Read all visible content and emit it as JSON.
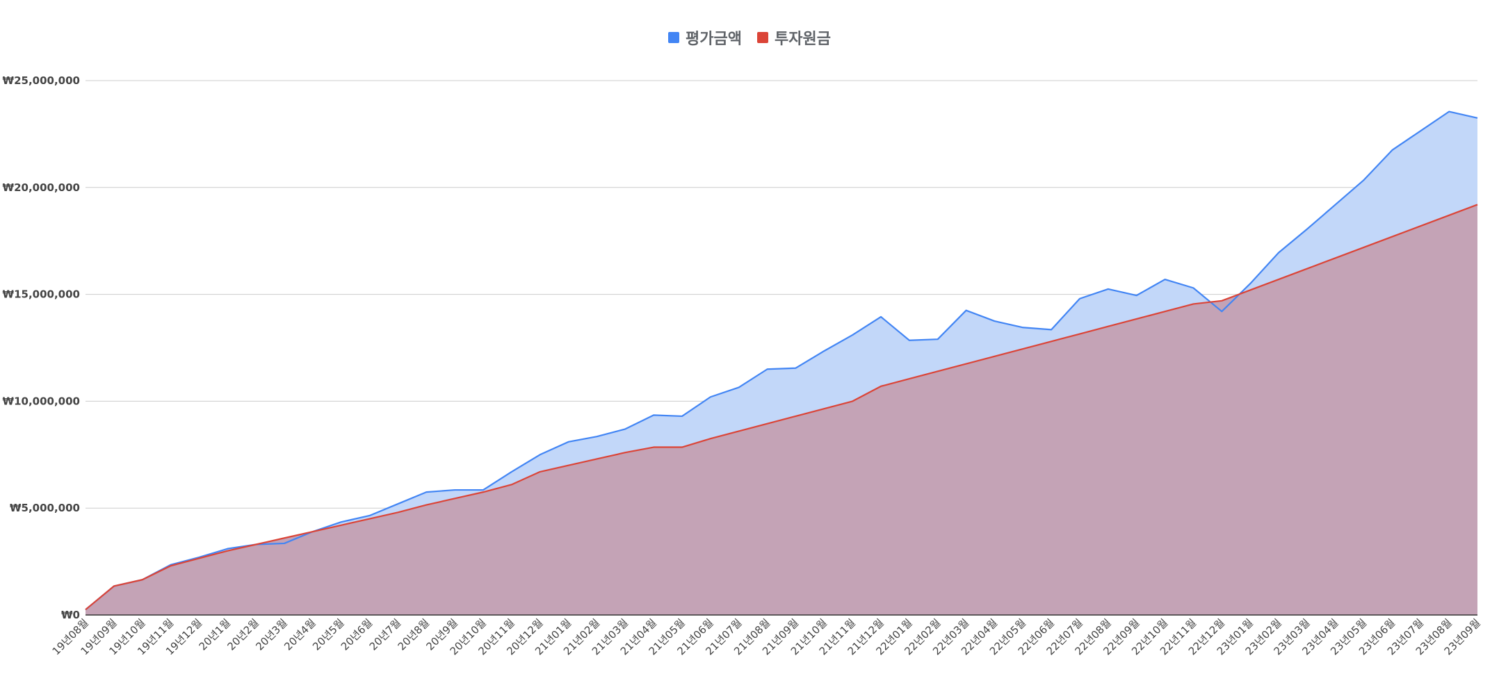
{
  "chart_data": {
    "type": "area",
    "title": "",
    "xlabel": "",
    "ylabel": "",
    "legend_position": "top",
    "grid": true,
    "ylim": [
      0,
      25000000
    ],
    "yticks": [
      {
        "value": 0,
        "label": "₩0"
      },
      {
        "value": 5000000,
        "label": "₩5,000,000"
      },
      {
        "value": 10000000,
        "label": "₩10,000,000"
      },
      {
        "value": 15000000,
        "label": "₩15,000,000"
      },
      {
        "value": 20000000,
        "label": "₩20,000,000"
      },
      {
        "value": 25000000,
        "label": "₩25,000,000"
      }
    ],
    "categories": [
      "19년08월",
      "19년09월",
      "19년10월",
      "19년11월",
      "19년12월",
      "20년1월",
      "20년2월",
      "20년3월",
      "20년4월",
      "20년5월",
      "20년6월",
      "20년7월",
      "20년8월",
      "20년9월",
      "20년10월",
      "20년11월",
      "20년12월",
      "21년01월",
      "21년02월",
      "21년03월",
      "21년04월",
      "21년05월",
      "21년06월",
      "21년07월",
      "21년08월",
      "21년09월",
      "21년10월",
      "21년11월",
      "21년12월",
      "22년01월",
      "22년02월",
      "22년03월",
      "22년04월",
      "22년05월",
      "22년06월",
      "22년07월",
      "22년08월",
      "22년09월",
      "22년10월",
      "22년11월",
      "22년12월",
      "23년01월",
      "23년02월",
      "23년03월",
      "23년04월",
      "23년05월",
      "23년06월",
      "23년07월",
      "23년08월",
      "23년09월"
    ],
    "series": [
      {
        "name": "평가금액",
        "color": "#4285f4",
        "fill": "#c2d7f9",
        "values": [
          250000,
          1350000,
          1650000,
          2350000,
          2700000,
          3100000,
          3300000,
          3350000,
          3900000,
          4350000,
          4650000,
          5200000,
          5750000,
          5850000,
          5850000,
          6700000,
          7500000,
          8100000,
          8350000,
          8700000,
          9350000,
          9300000,
          10200000,
          10650000,
          11500000,
          11550000,
          12350000,
          13100000,
          13950000,
          12850000,
          12900000,
          14250000,
          13750000,
          13450000,
          13350000,
          14800000,
          15250000,
          14950000,
          15700000,
          15300000,
          14200000,
          15500000,
          16950000,
          18050000,
          19200000,
          20350000,
          21750000,
          22650000,
          23550000,
          23250000
        ]
      },
      {
        "name": "투자원금",
        "color": "#db4437",
        "fill": "#c4a3b6",
        "values": [
          250000,
          1350000,
          1650000,
          2300000,
          2650000,
          3000000,
          3300000,
          3600000,
          3900000,
          4200000,
          4500000,
          4800000,
          5150000,
          5450000,
          5750000,
          6100000,
          6700000,
          7000000,
          7300000,
          7600000,
          7850000,
          7850000,
          8250000,
          8600000,
          8950000,
          9300000,
          9650000,
          10000000,
          10700000,
          11050000,
          11400000,
          11750000,
          12100000,
          12450000,
          12800000,
          13150000,
          13500000,
          13850000,
          14200000,
          14550000,
          14700000,
          15200000,
          15700000,
          16200000,
          16700000,
          17200000,
          17700000,
          18200000,
          18700000,
          19200000
        ]
      }
    ]
  }
}
